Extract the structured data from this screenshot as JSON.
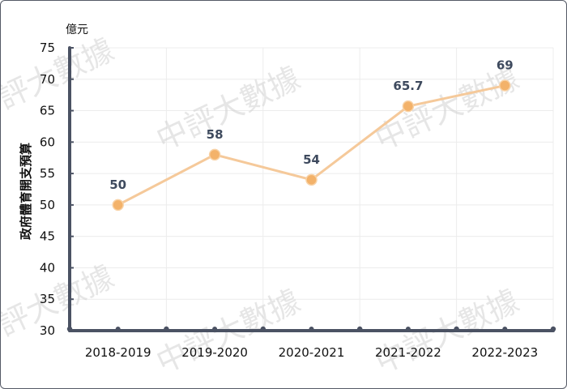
{
  "chart_data": {
    "type": "line",
    "categories": [
      "2018-2019",
      "2019-2020",
      "2020-2021",
      "2021-2022",
      "2022-2023"
    ],
    "values": [
      50,
      58,
      54,
      65.7,
      69
    ],
    "data_labels": [
      "50",
      "58",
      "54",
      "65.7",
      "69"
    ],
    "ylabel": "政府體育開支預算",
    "unit": "億元",
    "ylim": [
      30,
      75
    ],
    "yticks": [
      30,
      35,
      40,
      45,
      50,
      55,
      60,
      65,
      70,
      75
    ],
    "grid": true,
    "legend": "none",
    "colors": {
      "line": "#f5c99a",
      "marker": "#f3b26a",
      "axis": "#4b5263",
      "grid": "#ececec",
      "data_label": "#3e4a5e"
    }
  },
  "watermark": {
    "text": "中評大數據"
  }
}
